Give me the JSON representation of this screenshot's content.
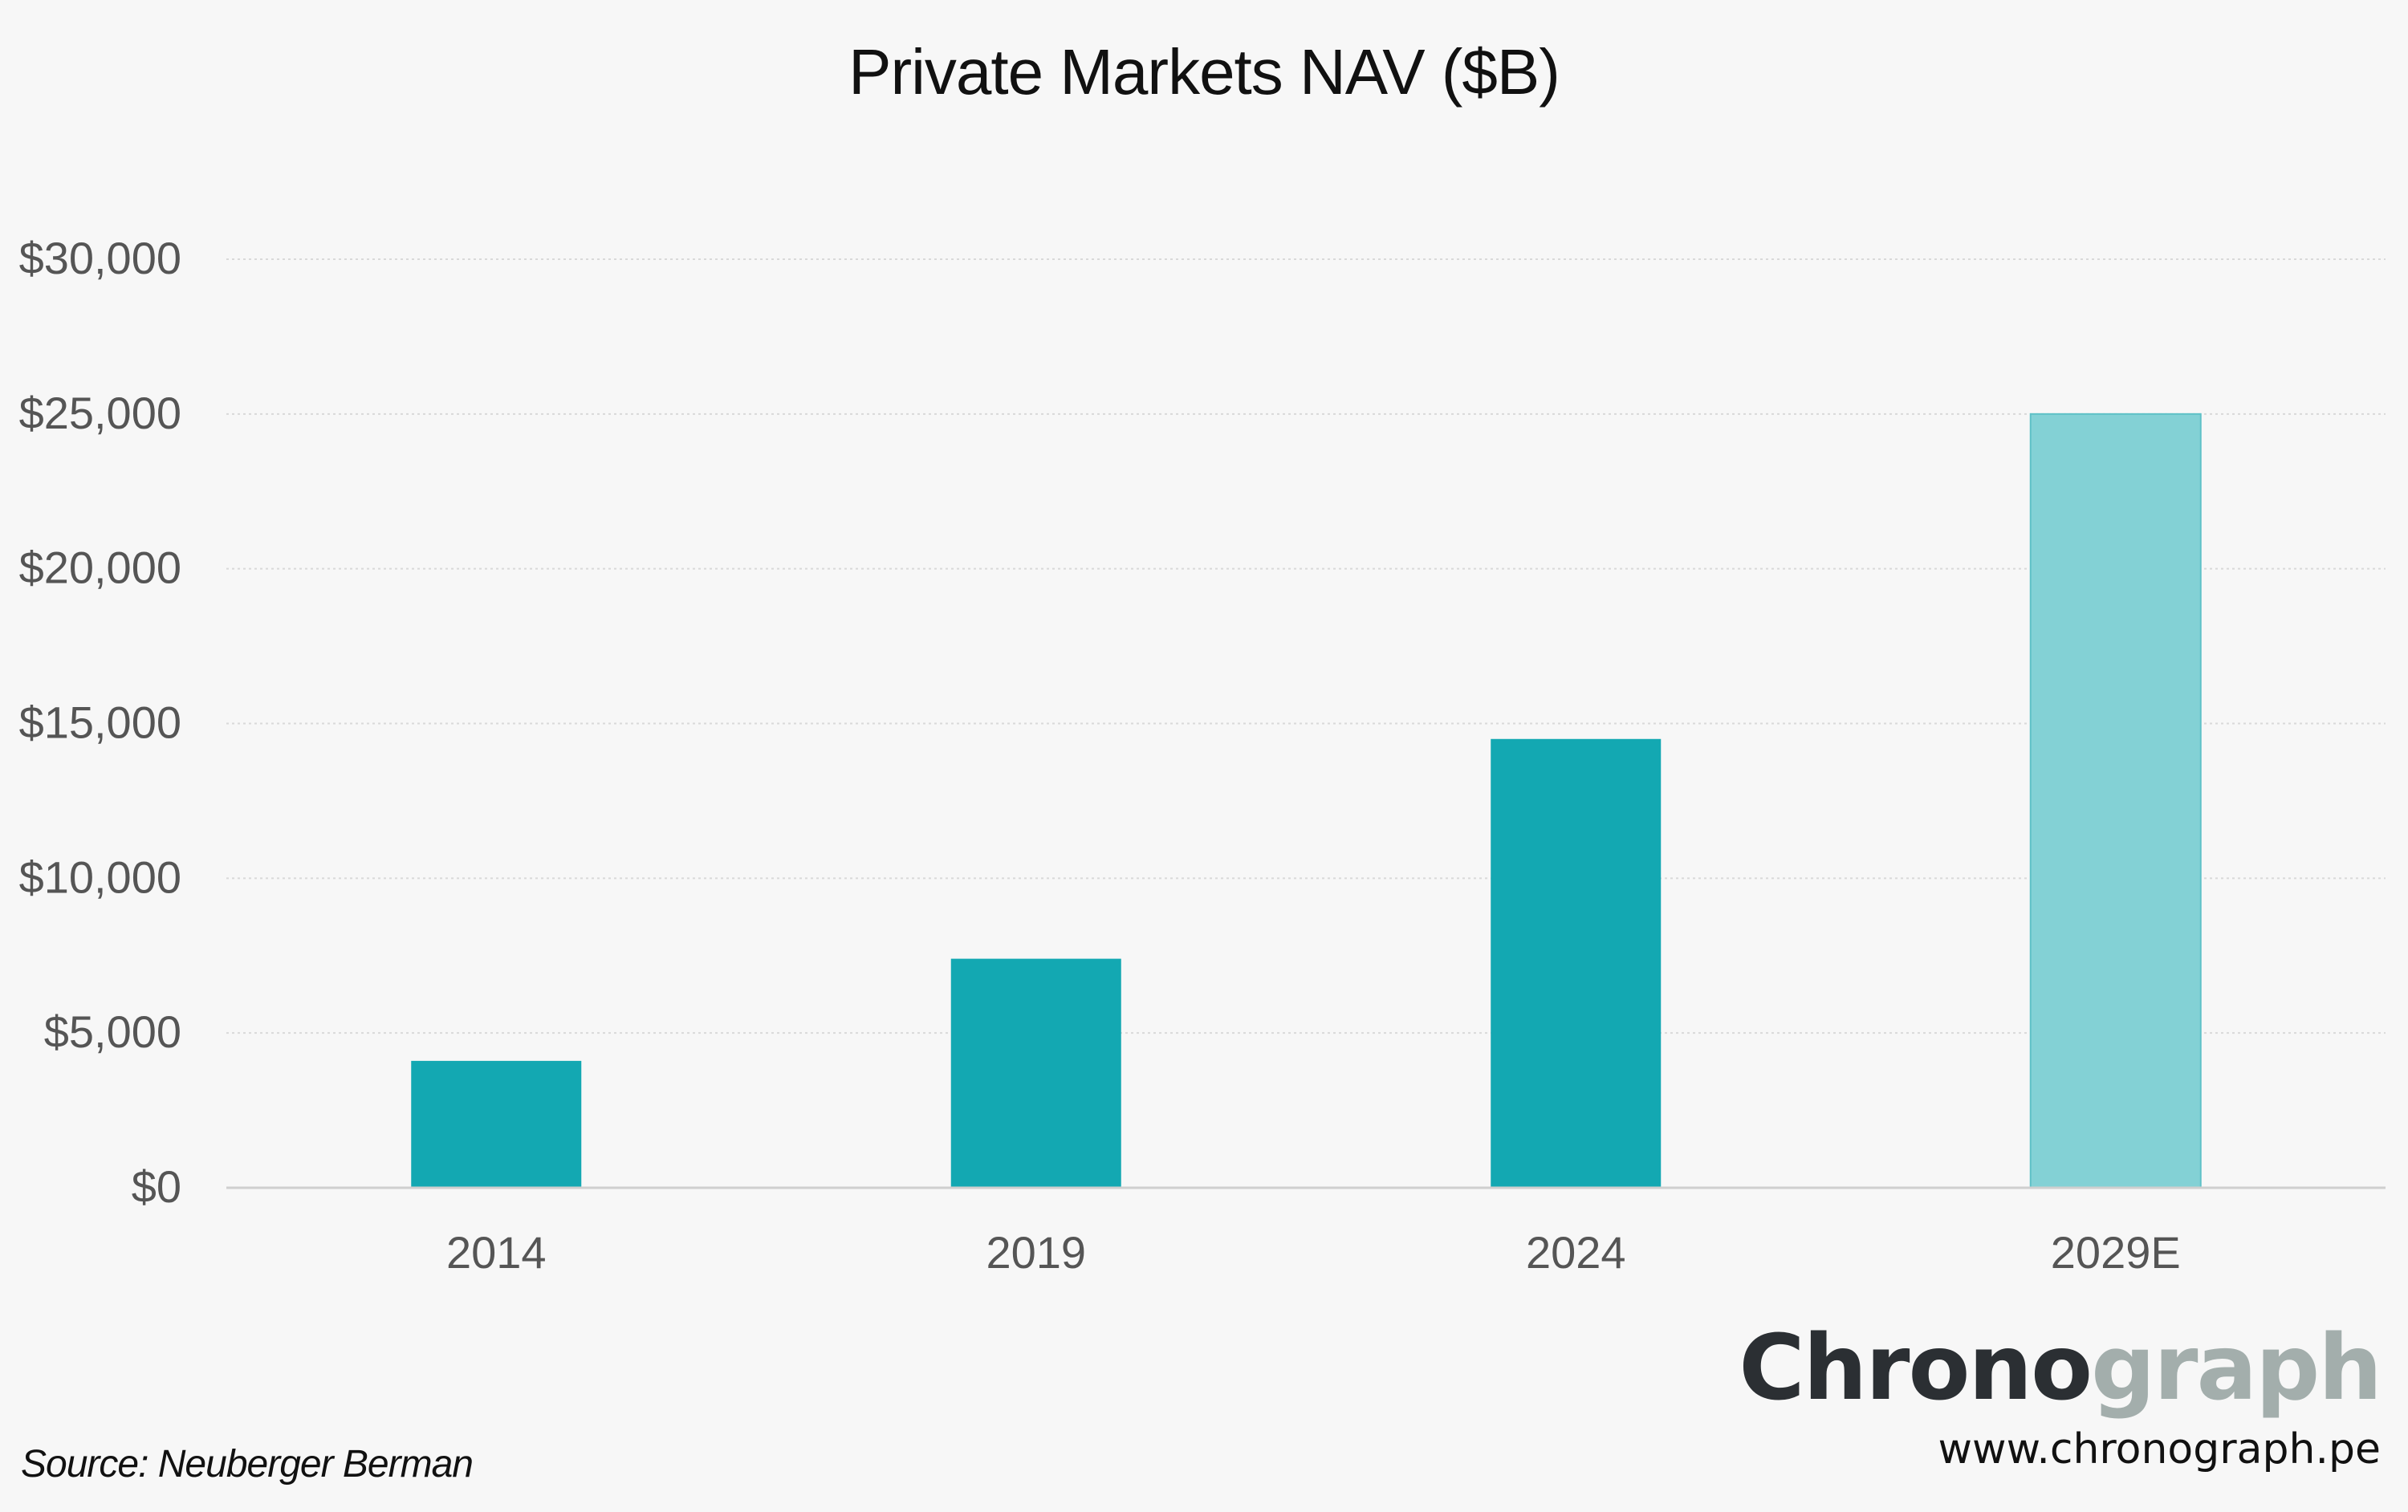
{
  "chart_data": {
    "type": "bar",
    "title": "Private Markets NAV ($B)",
    "categories": [
      "2014",
      "2019",
      "2024",
      "2029E"
    ],
    "values": [
      4100,
      7400,
      14500,
      25000
    ],
    "estimate_flags": [
      false,
      false,
      false,
      true
    ],
    "xlabel": "",
    "ylabel": "",
    "ylim": [
      0,
      30000
    ],
    "yticks": [
      0,
      5000,
      10000,
      15000,
      20000,
      25000,
      30000
    ],
    "ytick_labels": [
      "$0",
      "$5,000",
      "$10,000",
      "$15,000",
      "$20,000",
      "$25,000",
      "$30,000"
    ],
    "grid": true,
    "legend": "none",
    "colors": {
      "actual": "#13a8b2",
      "estimate": "#83d1d5",
      "grid": "#d9d9d9",
      "axis": "#cfcfcf",
      "tick_text": "#555555"
    }
  },
  "footer": {
    "source": "Source: Neuberger Berman",
    "brand_dark": "Chrono",
    "brand_light": "graph",
    "url": "www.chronograph.pe"
  }
}
